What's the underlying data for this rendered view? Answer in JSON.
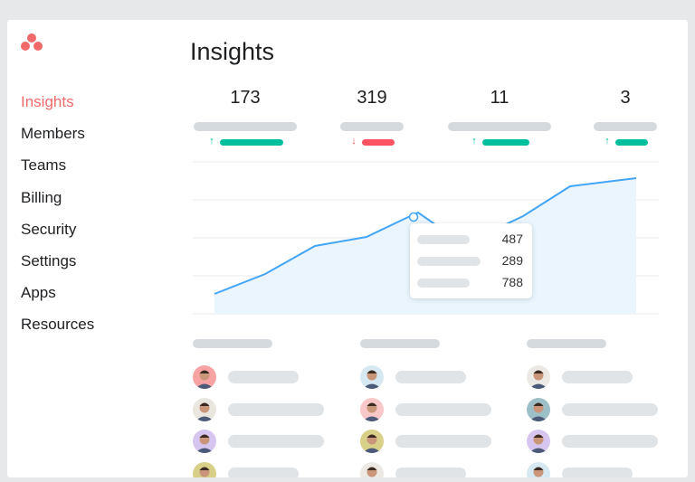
{
  "sidebar": {
    "items": [
      {
        "label": "Insights",
        "active": true
      },
      {
        "label": "Members"
      },
      {
        "label": "Teams"
      },
      {
        "label": "Billing"
      },
      {
        "label": "Security"
      },
      {
        "label": "Settings"
      },
      {
        "label": "Apps"
      },
      {
        "label": "Resources"
      }
    ]
  },
  "header": {
    "title": "Insights"
  },
  "stats": [
    {
      "value": "173",
      "trend": "up"
    },
    {
      "value": "319",
      "trend": "down"
    },
    {
      "value": "11",
      "trend": "up"
    },
    {
      "value": "3",
      "trend": "up"
    }
  ],
  "tooltip": {
    "values": [
      "487",
      "289",
      "788"
    ]
  },
  "colors": {
    "accent": "#f06a6a",
    "up": "#00bf9c",
    "down": "#ff5263",
    "line": "#42a5f5",
    "fill": "#eaf5fe"
  },
  "members": {
    "avatar_colors": [
      [
        "#f7a3a3",
        "#e9e6e0",
        "#d6c6ef",
        "#d8cf88"
      ],
      [
        "#d6e9f3",
        "#f8c7c7",
        "#d8cf88",
        "#ece9e4"
      ],
      [
        "#ece9e4",
        "#9dbfc8",
        "#d6c6ef",
        "#d6e9f3"
      ]
    ]
  }
}
